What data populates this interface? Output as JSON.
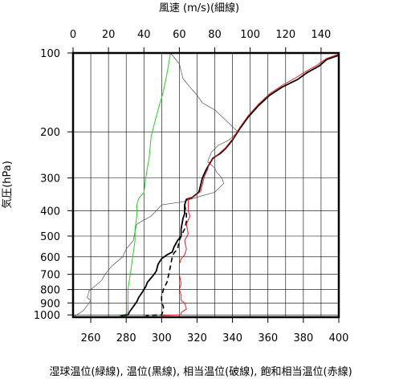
{
  "chart_data": {
    "type": "line",
    "title": "",
    "top_axis_title": "風速 (m/s)(細線)",
    "ylabel": "気圧(hPa)",
    "xlabel": "湿球温位(緑線), 温位(黒線), 相当温位(破線), 飽和相当温位(赤線)",
    "y_scale": "log",
    "y_inverted": true,
    "ylim": [
      1020,
      100
    ],
    "y_ticks": [
      100,
      200,
      300,
      400,
      500,
      600,
      700,
      800,
      900,
      1000
    ],
    "xlim": [
      250,
      400
    ],
    "x_ticks": [
      260,
      280,
      300,
      320,
      340,
      360,
      380,
      400
    ],
    "top_xlim": [
      0,
      150
    ],
    "top_x_ticks": [
      0,
      20,
      40,
      60,
      80,
      100,
      120,
      140
    ],
    "grid": true,
    "series": [
      {
        "axis": "top",
        "color": "#555555",
        "style": "thin",
        "points": [
          [
            55,
            100
          ],
          [
            60,
            110
          ],
          [
            62,
            125
          ],
          [
            66,
            135
          ],
          [
            70,
            145
          ],
          [
            73,
            155
          ],
          [
            80,
            165
          ],
          [
            86,
            180
          ],
          [
            93,
            200
          ],
          [
            88,
            215
          ],
          [
            82,
            225
          ],
          [
            78,
            240
          ],
          [
            76,
            260
          ],
          [
            80,
            275
          ],
          [
            81,
            285
          ],
          [
            84,
            300
          ],
          [
            85,
            315
          ],
          [
            80,
            340
          ],
          [
            70,
            355
          ],
          [
            62,
            370
          ],
          [
            50,
            380
          ],
          [
            47,
            400
          ],
          [
            44,
            420
          ],
          [
            36,
            450
          ],
          [
            35,
            480
          ],
          [
            34,
            520
          ],
          [
            30,
            560
          ],
          [
            28,
            600
          ],
          [
            22,
            650
          ],
          [
            18,
            700
          ],
          [
            16,
            740
          ],
          [
            12,
            780
          ],
          [
            9,
            810
          ],
          [
            8,
            860
          ],
          [
            10,
            880
          ],
          [
            8,
            920
          ],
          [
            6,
            960
          ],
          [
            3,
            990
          ],
          [
            1,
            1010
          ]
        ]
      },
      {
        "axis": "bottom",
        "color": "#2ecc2e",
        "style": "solid",
        "points": [
          [
            305,
            100
          ],
          [
            303,
            120
          ],
          [
            301,
            140
          ],
          [
            298,
            165
          ],
          [
            296,
            185
          ],
          [
            294,
            210
          ],
          [
            293,
            250
          ],
          [
            291,
            300
          ],
          [
            290,
            340
          ],
          [
            287,
            360
          ],
          [
            286,
            380
          ],
          [
            286,
            420
          ],
          [
            285,
            470
          ],
          [
            285,
            520
          ],
          [
            284,
            580
          ],
          [
            283,
            650
          ],
          [
            282,
            720
          ],
          [
            281,
            800
          ],
          [
            281,
            880
          ],
          [
            281,
            940
          ],
          [
            281,
            975
          ],
          [
            279,
            1005
          ],
          [
            276,
            1005
          ]
        ]
      },
      {
        "axis": "bottom",
        "color": "#000000",
        "style": "solid",
        "points": [
          [
            400,
            102
          ],
          [
            393,
            106
          ],
          [
            389,
            112
          ],
          [
            382,
            119
          ],
          [
            377,
            126
          ],
          [
            368,
            135
          ],
          [
            361,
            145
          ],
          [
            355,
            158
          ],
          [
            349,
            175
          ],
          [
            344,
            195
          ],
          [
            340,
            215
          ],
          [
            336,
            232
          ],
          [
            333,
            242
          ],
          [
            329,
            252
          ],
          [
            327,
            265
          ],
          [
            325,
            280
          ],
          [
            323,
            300
          ],
          [
            322,
            320
          ],
          [
            321,
            340
          ],
          [
            317,
            357
          ],
          [
            314,
            362
          ],
          [
            313,
            380
          ],
          [
            313,
            410
          ],
          [
            312,
            430
          ],
          [
            311,
            470
          ],
          [
            311,
            500
          ],
          [
            309,
            520
          ],
          [
            307,
            550
          ],
          [
            306,
            575
          ],
          [
            303,
            590
          ],
          [
            300,
            610
          ],
          [
            298,
            640
          ],
          [
            297,
            680
          ],
          [
            295,
            710
          ],
          [
            292,
            750
          ],
          [
            291,
            780
          ],
          [
            289,
            820
          ],
          [
            287,
            860
          ],
          [
            286,
            890
          ],
          [
            284,
            930
          ],
          [
            282,
            970
          ],
          [
            281,
            1000
          ],
          [
            277,
            1005
          ]
        ]
      },
      {
        "axis": "bottom",
        "color": "#000000",
        "style": "dashed",
        "points": [
          [
            313,
            380
          ],
          [
            314,
            410
          ],
          [
            314,
            440
          ],
          [
            313,
            470
          ],
          [
            311,
            500
          ],
          [
            310,
            520
          ],
          [
            309,
            560
          ],
          [
            307,
            580
          ],
          [
            306,
            600
          ],
          [
            305,
            650
          ],
          [
            304,
            700
          ],
          [
            303,
            750
          ],
          [
            301,
            800
          ],
          [
            300,
            850
          ],
          [
            300,
            890
          ],
          [
            301,
            930
          ],
          [
            301,
            960
          ],
          [
            300,
            1000
          ],
          [
            291,
            1005
          ]
        ]
      },
      {
        "axis": "bottom",
        "color": "#e02020",
        "style": "solid",
        "points": [
          [
            400,
            101
          ],
          [
            393,
            105
          ],
          [
            388,
            111
          ],
          [
            382,
            117
          ],
          [
            376,
            124
          ],
          [
            368,
            133
          ],
          [
            361,
            143
          ],
          [
            355,
            156
          ],
          [
            349,
            173
          ],
          [
            344,
            193
          ],
          [
            340,
            213
          ],
          [
            336,
            230
          ],
          [
            333,
            240
          ],
          [
            330,
            250
          ],
          [
            327,
            262
          ],
          [
            326,
            278
          ],
          [
            324,
            298
          ],
          [
            323,
            318
          ],
          [
            322,
            338
          ],
          [
            318,
            354
          ],
          [
            315,
            358
          ],
          [
            315,
            378
          ],
          [
            315,
            400
          ],
          [
            316,
            420
          ],
          [
            314,
            450
          ],
          [
            315,
            490
          ],
          [
            313,
            520
          ],
          [
            314,
            560
          ],
          [
            313,
            590
          ],
          [
            311,
            610
          ],
          [
            310,
            640
          ],
          [
            310,
            700
          ],
          [
            311,
            760
          ],
          [
            310,
            800
          ],
          [
            311,
            840
          ],
          [
            311,
            880
          ],
          [
            313,
            900
          ],
          [
            314,
            950
          ],
          [
            311,
            980
          ],
          [
            311,
            1000
          ],
          [
            300,
            1005
          ]
        ]
      }
    ]
  }
}
